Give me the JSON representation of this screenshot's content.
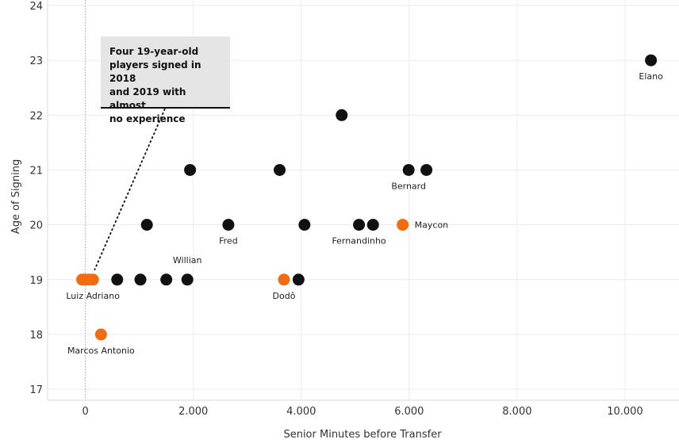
{
  "chart_data": {
    "type": "scatter",
    "title": "",
    "xlabel": "Senior Minutes before Transfer",
    "ylabel": "Age of Signing",
    "xlim": [
      -700,
      11000
    ],
    "ylim": [
      16.8,
      24.1
    ],
    "xticks": [
      0,
      2000,
      4000,
      6000,
      8000,
      10000
    ],
    "xtick_labels": [
      "0",
      "2.000",
      "4.000",
      "6.000",
      "8.000",
      "10.000"
    ],
    "yticks": [
      17,
      18,
      19,
      20,
      21,
      22,
      23,
      24
    ],
    "ytick_labels": [
      "17",
      "18",
      "19",
      "20",
      "21",
      "22",
      "23",
      "24"
    ],
    "grid": true,
    "colors": {
      "black_points": "#111111",
      "orange_points": "#f26b0f"
    },
    "points": [
      {
        "x": -60,
        "y": 19,
        "color": "orange",
        "label": ""
      },
      {
        "x": 0,
        "y": 19,
        "color": "orange",
        "label": ""
      },
      {
        "x": 70,
        "y": 19,
        "color": "orange",
        "label": ""
      },
      {
        "x": 140,
        "y": 19,
        "color": "orange",
        "label": "Luiz Adriano",
        "label_pos": "below"
      },
      {
        "x": 290,
        "y": 18,
        "color": "orange",
        "label": "Marcos Antonio",
        "label_pos": "below"
      },
      {
        "x": 590,
        "y": 19,
        "color": "black",
        "label": ""
      },
      {
        "x": 1020,
        "y": 19,
        "color": "black",
        "label": ""
      },
      {
        "x": 1140,
        "y": 20,
        "color": "black",
        "label": ""
      },
      {
        "x": 1500,
        "y": 19,
        "color": "black",
        "label": ""
      },
      {
        "x": 1890,
        "y": 19,
        "color": "black",
        "label": "Willian",
        "label_pos": "above"
      },
      {
        "x": 1940,
        "y": 21,
        "color": "black",
        "label": ""
      },
      {
        "x": 2650,
        "y": 20,
        "color": "black",
        "label": "Fred",
        "label_pos": "below"
      },
      {
        "x": 3600,
        "y": 21,
        "color": "black",
        "label": ""
      },
      {
        "x": 3680,
        "y": 19,
        "color": "orange",
        "label": "Dodô",
        "label_pos": "below"
      },
      {
        "x": 3950,
        "y": 19,
        "color": "black",
        "label": ""
      },
      {
        "x": 4060,
        "y": 20,
        "color": "black",
        "label": ""
      },
      {
        "x": 4750,
        "y": 22,
        "color": "black",
        "label": ""
      },
      {
        "x": 5070,
        "y": 20,
        "color": "black",
        "label": "Fernandinho",
        "label_pos": "below"
      },
      {
        "x": 5330,
        "y": 20,
        "color": "black",
        "label": ""
      },
      {
        "x": 5880,
        "y": 20,
        "color": "orange",
        "label": "Maycon",
        "label_pos": "right"
      },
      {
        "x": 5990,
        "y": 21,
        "color": "black",
        "label": "Bernard",
        "label_pos": "below"
      },
      {
        "x": 6320,
        "y": 21,
        "color": "black",
        "label": ""
      },
      {
        "x": 10480,
        "y": 23,
        "color": "black",
        "label": "Elano",
        "label_pos": "below"
      }
    ],
    "annotation": {
      "lines": [
        "Four 19-year-old",
        "players signed in 2018",
        "and 2019 with almost",
        "no  experience"
      ]
    }
  }
}
